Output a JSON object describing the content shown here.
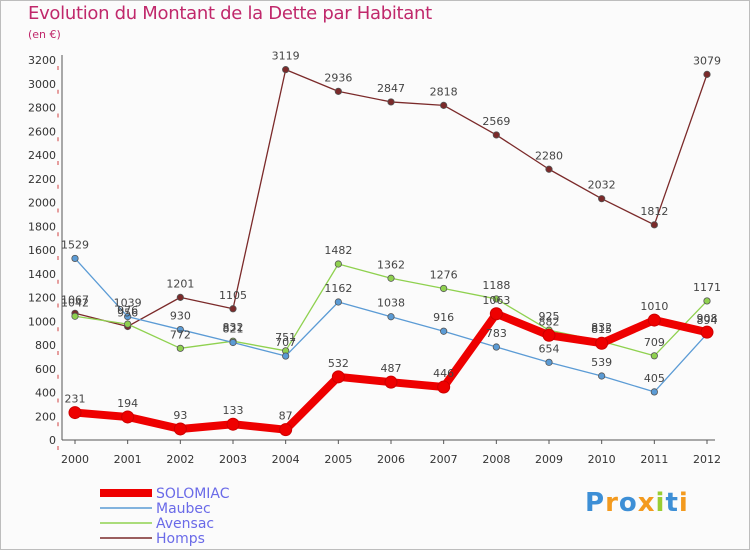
{
  "chart_data": {
    "type": "line",
    "title": "Evolution du Montant de la Dette par Habitant",
    "subtitle": "(en €)",
    "x": [
      "2000",
      "2001",
      "2002",
      "2003",
      "2004",
      "2005",
      "2006",
      "2007",
      "2008",
      "2009",
      "2010",
      "2011",
      "2012"
    ],
    "ylim": [
      0,
      3200
    ],
    "yticks": [
      0,
      200,
      400,
      600,
      800,
      1000,
      1200,
      1400,
      1600,
      1800,
      2000,
      2200,
      2400,
      2600,
      2800,
      3000,
      3200
    ],
    "grid": false,
    "legend_position": "bottom-left",
    "series": [
      {
        "name": "SOLOMIAC",
        "color": "#ee0000",
        "values": [
          231,
          194,
          93,
          133,
          87,
          532,
          487,
          446,
          1063,
          882,
          815,
          1010,
          908
        ]
      },
      {
        "name": "Maubec",
        "color": "#5b9bd5",
        "values": [
          1529,
          1039,
          930,
          821,
          707,
          1162,
          1038,
          916,
          783,
          654,
          539,
          405,
          894
        ]
      },
      {
        "name": "Avensac",
        "color": "#8fd14f",
        "values": [
          1042,
          976,
          772,
          832,
          751,
          1482,
          1362,
          1276,
          1188,
          925,
          832,
          709,
          1171
        ]
      },
      {
        "name": "Homps",
        "color": "#7b2a2a",
        "values": [
          1067,
          956,
          1201,
          1105,
          3119,
          2936,
          2847,
          2818,
          2569,
          2280,
          2032,
          1812,
          3079
        ]
      }
    ]
  },
  "logo": {
    "letters": [
      "P",
      "r",
      "o",
      "x",
      "i",
      "t",
      "i"
    ],
    "colors": [
      "#3d8fd6",
      "#f39a1e",
      "#3d8fd6",
      "#f39a1e",
      "#9acd32",
      "#3d8fd6",
      "#f39a1e"
    ]
  }
}
